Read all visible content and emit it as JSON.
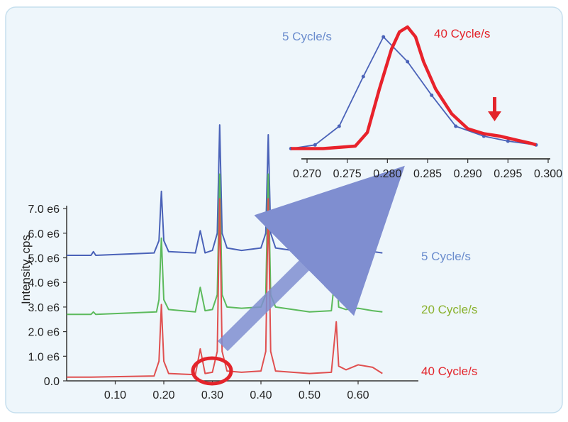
{
  "chart_data": [
    {
      "type": "line",
      "title": "",
      "xlabel": "",
      "ylabel": "Intensity, cps",
      "xlim": [
        0.0,
        0.65
      ],
      "ylim": [
        0.0,
        7.0
      ],
      "x_ticks": [
        "0.10",
        "0.20",
        "0.30",
        "0.40",
        "0.50",
        "0.60"
      ],
      "x_tick_values": [
        0.1,
        0.2,
        0.3,
        0.4,
        0.5,
        0.6
      ],
      "y_ticks": [
        "0.0",
        "1.0 e6",
        "2.0 e6",
        "3.0 e6",
        "4.0 e6",
        "5.0 e6",
        "6.0 e6",
        "7.0 e6"
      ],
      "y_tick_values": [
        0,
        1,
        2,
        3,
        4,
        5,
        6,
        7
      ],
      "series": [
        {
          "name": "5 Cycle/s",
          "color": "#4a62b8",
          "x": [
            0.0,
            0.05,
            0.055,
            0.06,
            0.18,
            0.19,
            0.195,
            0.2,
            0.21,
            0.265,
            0.275,
            0.285,
            0.3,
            0.31,
            0.315,
            0.32,
            0.33,
            0.36,
            0.4,
            0.41,
            0.415,
            0.42,
            0.43,
            0.5,
            0.545,
            0.555,
            0.56,
            0.575,
            0.6,
            0.63,
            0.65
          ],
          "y": [
            5.1,
            5.1,
            5.25,
            5.1,
            5.2,
            5.7,
            7.7,
            5.7,
            5.25,
            5.2,
            6.1,
            5.2,
            5.3,
            6.0,
            10.4,
            6.0,
            5.4,
            5.3,
            5.4,
            6.0,
            10.0,
            6.0,
            5.4,
            5.2,
            5.25,
            6.6,
            5.6,
            5.3,
            5.35,
            5.25,
            5.2
          ]
        },
        {
          "name": "20 Cycle/s",
          "color": "#5cba5c",
          "x": [
            0.0,
            0.05,
            0.055,
            0.06,
            0.185,
            0.19,
            0.195,
            0.2,
            0.21,
            0.265,
            0.275,
            0.285,
            0.3,
            0.31,
            0.315,
            0.32,
            0.33,
            0.36,
            0.4,
            0.41,
            0.415,
            0.42,
            0.43,
            0.5,
            0.545,
            0.555,
            0.56,
            0.575,
            0.6,
            0.63,
            0.65
          ],
          "y": [
            2.7,
            2.7,
            2.8,
            2.7,
            2.8,
            3.3,
            5.8,
            3.3,
            2.9,
            2.8,
            3.8,
            2.85,
            2.9,
            3.5,
            8.4,
            3.5,
            3.0,
            2.95,
            3.0,
            3.5,
            8.4,
            3.5,
            3.0,
            2.8,
            2.85,
            4.8,
            3.0,
            2.9,
            2.95,
            2.85,
            2.8
          ]
        },
        {
          "name": "40 Cycle/s",
          "color": "#e05050",
          "x": [
            0.0,
            0.05,
            0.18,
            0.19,
            0.195,
            0.2,
            0.21,
            0.265,
            0.275,
            0.285,
            0.3,
            0.31,
            0.315,
            0.32,
            0.33,
            0.36,
            0.4,
            0.41,
            0.415,
            0.42,
            0.43,
            0.5,
            0.545,
            0.555,
            0.56,
            0.575,
            0.6,
            0.63,
            0.65
          ],
          "y": [
            0.15,
            0.15,
            0.2,
            0.8,
            3.1,
            0.8,
            0.3,
            0.25,
            1.3,
            0.3,
            0.35,
            1.2,
            7.4,
            1.2,
            0.4,
            0.35,
            0.4,
            1.2,
            7.4,
            1.2,
            0.4,
            0.3,
            0.35,
            2.4,
            0.6,
            0.45,
            0.65,
            0.55,
            0.3
          ]
        }
      ],
      "legend": "right-of-traces",
      "grid": false,
      "annotations": [
        "circle around peak near 0.28",
        "arrow pointing to zoomed inset"
      ]
    },
    {
      "type": "line",
      "title": "",
      "xlabel": "",
      "ylabel": "",
      "xlim": [
        0.268,
        0.3
      ],
      "ylim": [
        0.0,
        1.0
      ],
      "x_ticks": [
        "0.270",
        "0.275",
        "0.280",
        "0.285",
        "0.290",
        "0.295",
        "0.300"
      ],
      "x_tick_values": [
        0.27,
        0.275,
        0.28,
        0.285,
        0.29,
        0.295,
        0.3
      ],
      "series": [
        {
          "name": "5 Cycle/s",
          "color": "#4a62b8",
          "markers": true,
          "x": [
            0.268,
            0.271,
            0.274,
            0.277,
            0.2795,
            0.2825,
            0.2855,
            0.2885,
            0.292,
            0.295,
            0.2985
          ],
          "y": [
            0.02,
            0.05,
            0.2,
            0.6,
            0.92,
            0.72,
            0.45,
            0.2,
            0.12,
            0.08,
            0.05
          ]
        },
        {
          "name": "40 Cycle/s",
          "color": "#e8222b",
          "markers": false,
          "x": [
            0.268,
            0.272,
            0.276,
            0.2775,
            0.279,
            0.2805,
            0.2815,
            0.2825,
            0.2835,
            0.2845,
            0.286,
            0.288,
            0.29,
            0.292,
            0.294,
            0.296,
            0.298,
            0.2985
          ],
          "y": [
            0.02,
            0.02,
            0.04,
            0.15,
            0.5,
            0.82,
            0.96,
            1.0,
            0.92,
            0.72,
            0.5,
            0.3,
            0.18,
            0.14,
            0.12,
            0.09,
            0.06,
            0.05
          ]
        }
      ],
      "annotations": [
        "down arrow near 0.293"
      ]
    }
  ],
  "labels": {
    "y_axis_title": "Intensity, cps",
    "trace_label_5": "5 Cycle/s",
    "trace_label_20": "20 Cycle/s",
    "trace_label_40": "40 Cycle/s",
    "inset_label_5": "5 Cycle/s",
    "inset_label_40": "40 Cycle/s"
  },
  "colors": {
    "background_panel": "#eef6fb",
    "panel_border": "#c6dfee",
    "blue_trace": "#4a62b8",
    "green_trace": "#5cba5c",
    "red_trace": "#e05050",
    "inset_red": "#e8222b",
    "label_blue": "#6a8ccd",
    "label_green": "#8ab12e",
    "label_red": "#e3242b",
    "arrow": "#7f8ed0"
  }
}
